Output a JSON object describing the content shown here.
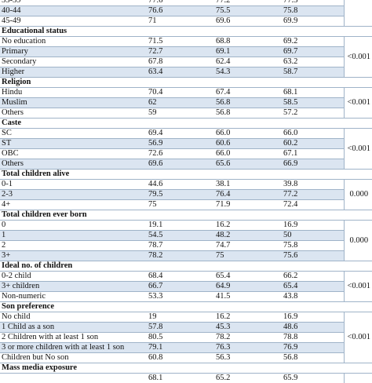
{
  "sections": [
    {
      "title": "",
      "pvalue": "",
      "rows": [
        {
          "label": "35-39",
          "v": [
            "77.6",
            "77.2",
            "77.3"
          ]
        },
        {
          "label": "40-44",
          "v": [
            "76.6",
            "75.5",
            "75.8"
          ]
        },
        {
          "label": "45-49",
          "v": [
            "71",
            "69.6",
            "69.9"
          ]
        }
      ]
    },
    {
      "title": "Educational status",
      "pvalue": "<0.001",
      "rows": [
        {
          "label": "No education",
          "v": [
            "71.5",
            "68.8",
            "69.2"
          ]
        },
        {
          "label": "Primary",
          "v": [
            "72.7",
            "69.1",
            "69.7"
          ]
        },
        {
          "label": "Secondary",
          "v": [
            "67.8",
            "62.4",
            "63.2"
          ]
        },
        {
          "label": "Higher",
          "v": [
            "63.4",
            "54.3",
            "58.7"
          ]
        }
      ]
    },
    {
      "title": "Religion",
      "pvalue": "<0.001",
      "rows": [
        {
          "label": "Hindu",
          "v": [
            "70.4",
            "67.4",
            "68.1"
          ]
        },
        {
          "label": "Muslim",
          "v": [
            "62",
            "56.8",
            "58.5"
          ]
        },
        {
          "label": "Others",
          "v": [
            "59",
            "56.8",
            "57.2"
          ]
        }
      ]
    },
    {
      "title": "Caste",
      "pvalue": "<0.001",
      "rows": [
        {
          "label": "SC",
          "v": [
            "69.4",
            "66.0",
            "66.0"
          ]
        },
        {
          "label": "ST",
          "v": [
            "56.9",
            "60.6",
            "60.2"
          ]
        },
        {
          "label": "OBC",
          "v": [
            "72.6",
            "66.0",
            "67.1"
          ]
        },
        {
          "label": "Others",
          "v": [
            "69.6",
            "65.6",
            "66.9"
          ]
        }
      ]
    },
    {
      "title": "Total children alive",
      "pvalue": "0.000",
      "rows": [
        {
          "label": "0-1",
          "v": [
            "44.6",
            "38.1",
            "39.8"
          ]
        },
        {
          "label": "2-3",
          "v": [
            "79.5",
            "76.4",
            "77.2"
          ]
        },
        {
          "label": "4+",
          "v": [
            "75",
            "71.9",
            "72.4"
          ]
        }
      ]
    },
    {
      "title": "Total children ever born",
      "pvalue": "0.000",
      "rows": [
        {
          "label": "0",
          "v": [
            "19.1",
            "16.2",
            "16.9"
          ]
        },
        {
          "label": "1",
          "v": [
            "54.5",
            "48.2",
            "50"
          ]
        },
        {
          "label": "2",
          "v": [
            "78.7",
            "74.7",
            "75.8"
          ]
        },
        {
          "label": "3+",
          "v": [
            "78.2",
            "75",
            "75.6"
          ]
        }
      ]
    },
    {
      "title": "Ideal no. of children",
      "pvalue": "<0.001",
      "rows": [
        {
          "label": "0-2 child",
          "v": [
            "68.4",
            "65.4",
            "66.2"
          ]
        },
        {
          "label": "3+ children",
          "v": [
            "66.7",
            "64.9",
            "65.4"
          ]
        },
        {
          "label": "Non-numeric",
          "v": [
            "53.3",
            "41.5",
            "43.8"
          ]
        }
      ]
    },
    {
      "title": "Son preference",
      "pvalue": "<0.001",
      "rows": [
        {
          "label": "No child",
          "v": [
            "19",
            "16.2",
            "16.9"
          ]
        },
        {
          "label": "1 Child as a son",
          "v": [
            "57.8",
            "45.3",
            "48.6"
          ]
        },
        {
          "label": "2 Children with at least 1 son",
          "v": [
            "80.5",
            "78.2",
            "78.8"
          ]
        },
        {
          "label": "3 or more children with at least 1 son",
          "v": [
            "79.1",
            "76.3",
            "76.9"
          ]
        },
        {
          "label": "Children but No son",
          "v": [
            "60.8",
            "56.3",
            "56.8"
          ]
        }
      ]
    },
    {
      "title": "Mass media exposure",
      "pvalue": "",
      "rows": [
        {
          "label": "",
          "v": [
            "68.1",
            "65.2",
            "65.9"
          ]
        }
      ]
    }
  ]
}
